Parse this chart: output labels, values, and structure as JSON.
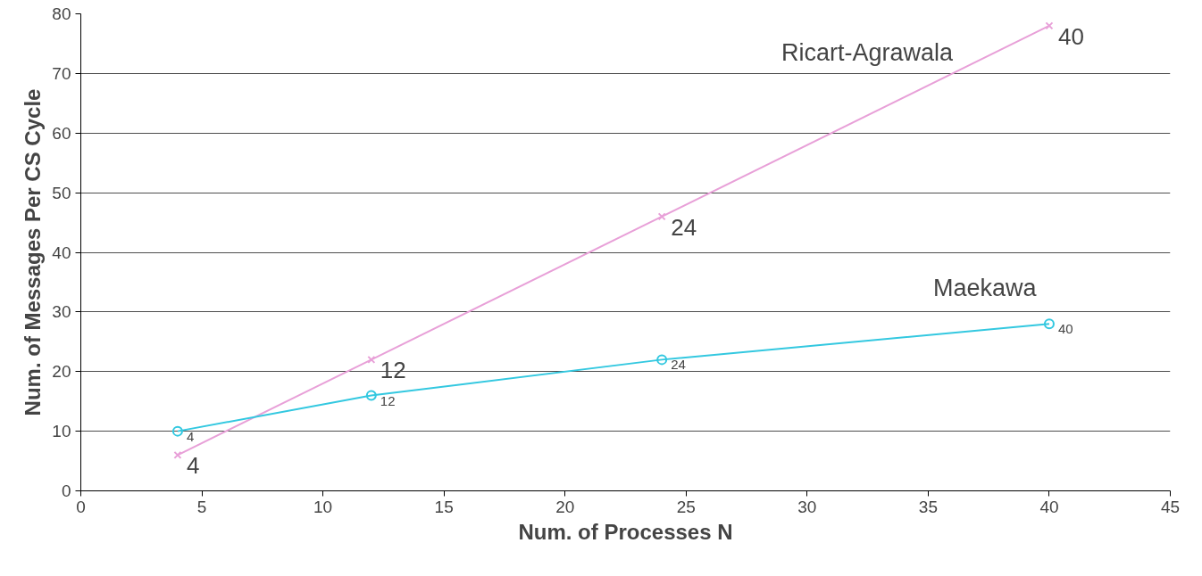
{
  "chart_data": {
    "type": "line",
    "xlabel": "Num. of Processes N",
    "ylabel": "Num. of Messages Per CS Cycle",
    "x": [
      4,
      12,
      24,
      40
    ],
    "series": [
      {
        "name": "Ricart-Agrawala",
        "color": "#e8a0d8",
        "marker": "cross",
        "values": [
          6,
          22,
          46,
          78
        ]
      },
      {
        "name": "Maekawa",
        "color": "#33c8e0",
        "marker": "circle",
        "values": [
          10,
          16,
          22,
          28
        ]
      }
    ],
    "annotations": [
      {
        "text": "4",
        "x": 4,
        "y": 6
      },
      {
        "text": "12",
        "x": 12,
        "y": 22
      },
      {
        "text": "24",
        "x": 24,
        "y": 46
      },
      {
        "text": "40",
        "x": 40,
        "y": 78
      },
      {
        "text": "4",
        "x": 4,
        "y": 10
      },
      {
        "text": "12",
        "x": 12,
        "y": 16
      },
      {
        "text": "24",
        "x": 24,
        "y": 22
      },
      {
        "text": "40",
        "x": 40,
        "y": 28
      }
    ],
    "xlim": [
      0,
      45
    ],
    "xticks": [
      0,
      5,
      10,
      15,
      20,
      25,
      30,
      35,
      40,
      45
    ],
    "ylim": [
      0,
      80
    ],
    "yticks": [
      0,
      10,
      20,
      30,
      40,
      50,
      60,
      70,
      80
    ],
    "grid": "y",
    "legend": false,
    "line_style": "solid"
  }
}
